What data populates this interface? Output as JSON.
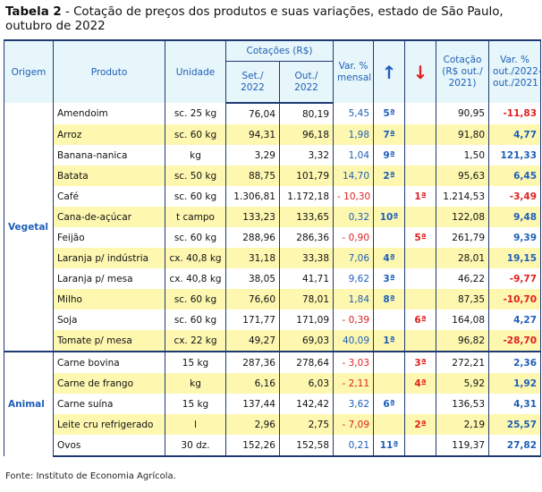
{
  "title": {
    "label": "Tabela 2",
    "text": " - Cotação de preços dos produtos e suas variações, estado de São Paulo, outubro de 2022"
  },
  "header": {
    "origem": "Origem",
    "produto": "Produto",
    "unidade": "Unidade",
    "cotacoes": "Cotações (R$)",
    "set": "Set./ 2022",
    "out": "Out./ 2022",
    "var_mensal": "Var. % mensal",
    "up_icon": "arrow-up-icon",
    "down_icon": "arrow-down-icon",
    "cotacao_2021": "Cotação (R$ out./ 2021)",
    "var_anual": "Var. % out./2022- out./2021"
  },
  "groups": [
    {
      "name": "Vegetal",
      "rows": [
        {
          "produto": "Amendoim",
          "unidade": "sc. 25 kg",
          "set": "76,04",
          "out": "80,19",
          "var": "5,45",
          "up": "5ª",
          "down": "",
          "cot2021": "90,95",
          "var_anual": "-11,83",
          "highlight": false
        },
        {
          "produto": "Arroz",
          "unidade": "sc. 60 kg",
          "set": "94,31",
          "out": "96,18",
          "var": "1,98",
          "up": "7ª",
          "down": "",
          "cot2021": "91,80",
          "var_anual": "4,77",
          "highlight": true
        },
        {
          "produto": "Banana-nanica",
          "unidade": "kg",
          "set": "3,29",
          "out": "3,32",
          "var": "1,04",
          "up": "9ª",
          "down": "",
          "cot2021": "1,50",
          "var_anual": "121,33",
          "highlight": false
        },
        {
          "produto": "Batata",
          "unidade": "sc. 50 kg",
          "set": "88,75",
          "out": "101,79",
          "var": "14,70",
          "up": "2ª",
          "down": "",
          "cot2021": "95,63",
          "var_anual": "6,45",
          "highlight": true
        },
        {
          "produto": "Café",
          "unidade": "sc. 60 kg",
          "set": "1.306,81",
          "out": "1.172,18",
          "var": "- 10,30",
          "up": "",
          "down": "1ª",
          "cot2021": "1.214,53",
          "var_anual": "-3,49",
          "highlight": false
        },
        {
          "produto": "Cana-de-açúcar",
          "unidade": "t campo",
          "set": "133,23",
          "out": "133,65",
          "var": "0,32",
          "up": "10ª",
          "down": "",
          "cot2021": "122,08",
          "var_anual": "9,48",
          "highlight": true
        },
        {
          "produto": "Feijão",
          "unidade": "sc. 60 kg",
          "set": "288,96",
          "out": "286,36",
          "var": "- 0,90",
          "up": "",
          "down": "5ª",
          "cot2021": "261,79",
          "var_anual": "9,39",
          "highlight": false
        },
        {
          "produto": "Laranja p/ indústria",
          "unidade": "cx. 40,8 kg",
          "set": "31,18",
          "out": "33,38",
          "var": "7,06",
          "up": "4ª",
          "down": "",
          "cot2021": "28,01",
          "var_anual": "19,15",
          "highlight": true
        },
        {
          "produto": "Laranja p/ mesa",
          "unidade": "cx. 40,8 kg",
          "set": "38,05",
          "out": "41,71",
          "var": "9,62",
          "up": "3ª",
          "down": "",
          "cot2021": "46,22",
          "var_anual": "-9,77",
          "highlight": false
        },
        {
          "produto": "Milho",
          "unidade": "sc. 60 kg",
          "set": "76,60",
          "out": "78,01",
          "var": "1,84",
          "up": "8ª",
          "down": "",
          "cot2021": "87,35",
          "var_anual": "-10,70",
          "highlight": true
        },
        {
          "produto": "Soja",
          "unidade": "sc. 60 kg",
          "set": "171,77",
          "out": "171,09",
          "var": "- 0,39",
          "up": "",
          "down": "6ª",
          "cot2021": "164,08",
          "var_anual": "4,27",
          "highlight": false
        },
        {
          "produto": "Tomate p/ mesa",
          "unidade": "cx. 22 kg",
          "set": "49,27",
          "out": "69,03",
          "var": "40,09",
          "up": "1ª",
          "down": "",
          "cot2021": "96,82",
          "var_anual": "-28,70",
          "highlight": true
        }
      ]
    },
    {
      "name": "Animal",
      "rows": [
        {
          "produto": "Carne bovina",
          "unidade": "15 kg",
          "set": "287,36",
          "out": "278,64",
          "var": "- 3,03",
          "up": "",
          "down": "3ª",
          "cot2021": "272,21",
          "var_anual": "2,36",
          "highlight": false
        },
        {
          "produto": "Carne de frango",
          "unidade": "kg",
          "set": "6,16",
          "out": "6,03",
          "var": "- 2,11",
          "up": "",
          "down": "4ª",
          "cot2021": "5,92",
          "var_anual": "1,92",
          "highlight": true
        },
        {
          "produto": "Carne suína",
          "unidade": "15 kg",
          "set": "137,44",
          "out": "142,42",
          "var": "3,62",
          "up": "6ª",
          "down": "",
          "cot2021": "136,53",
          "var_anual": "4,31",
          "highlight": false
        },
        {
          "produto": "Leite cru refrigerado",
          "unidade": "l",
          "set": "2,96",
          "out": "2,75",
          "var": "- 7,09",
          "up": "",
          "down": "2ª",
          "cot2021": "2,19",
          "var_anual": "25,57",
          "highlight": true
        },
        {
          "produto": "Ovos",
          "unidade": "30 dz.",
          "set": "152,26",
          "out": "152,58",
          "var": "0,21",
          "up": "11ª",
          "down": "",
          "cot2021": "119,37",
          "var_anual": "27,82",
          "highlight": false
        }
      ]
    }
  ],
  "source": "Fonte: Instituto de Economia Agrícola.",
  "colors": {
    "header_bg": "#e6f6fa",
    "highlight_bg": "#fdf7b0",
    "blue": "#1f5fb8",
    "red": "#e01f1f",
    "border": "#1f3a73"
  }
}
